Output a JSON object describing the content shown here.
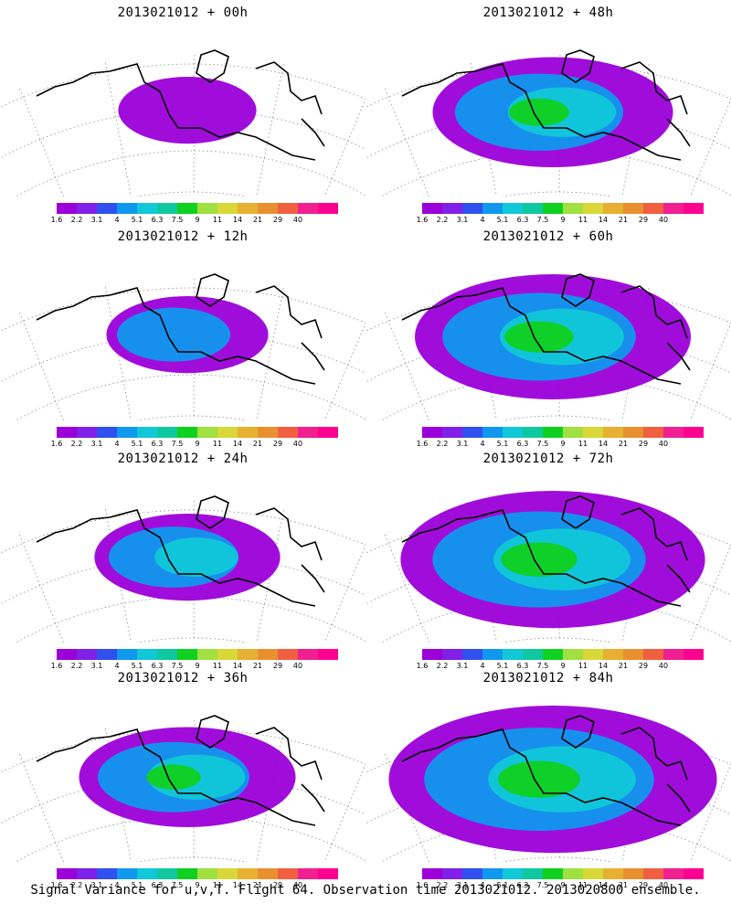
{
  "panels": [
    {
      "title": "2013021012 + 00h",
      "spread": 0.12
    },
    {
      "title": "2013021012 + 48h",
      "spread": 0.55
    },
    {
      "title": "2013021012 + 12h",
      "spread": 0.22
    },
    {
      "title": "2013021012 + 60h",
      "spread": 0.7
    },
    {
      "title": "2013021012 + 24h",
      "spread": 0.32
    },
    {
      "title": "2013021012 + 72h",
      "spread": 0.82
    },
    {
      "title": "2013021012 + 36h",
      "spread": 0.45
    },
    {
      "title": "2013021012 + 84h",
      "spread": 0.92
    }
  ],
  "colorbar": {
    "labels": [
      "1.6",
      "2.2",
      "3.1",
      "4",
      "5.1",
      "6.3",
      "7.5",
      "9",
      "11",
      "14",
      "21",
      "29",
      "40"
    ],
    "colors": [
      "#9b00d9",
      "#8020e8",
      "#3050f0",
      "#1098ee",
      "#10c8d8",
      "#10c8a0",
      "#10d020",
      "#a0e040",
      "#d8d838",
      "#e8b030",
      "#e89030",
      "#f06040",
      "#f02090",
      "#ff0090"
    ]
  },
  "caption": "Signal Variance for u,v,T. Flight 64. Observation time 2013021012. 2013020800 ensemble."
}
